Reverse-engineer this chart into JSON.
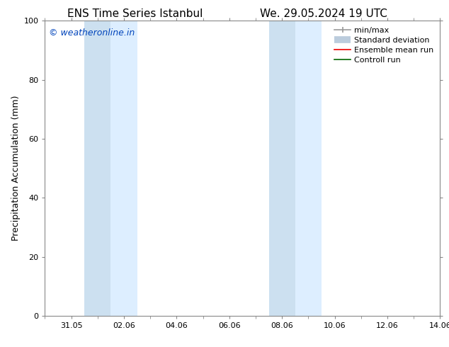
{
  "title_left": "ENS Time Series Istanbul",
  "title_right": "We. 29.05.2024 19 UTC",
  "ylabel": "Precipitation Accumulation (mm)",
  "ylim": [
    0,
    100
  ],
  "yticks": [
    0,
    20,
    40,
    60,
    80,
    100
  ],
  "xtick_labels": [
    "31.05",
    "02.06",
    "04.06",
    "06.06",
    "08.06",
    "10.06",
    "12.06",
    "14.06"
  ],
  "shaded_bands": [
    {
      "x_start": 1.5,
      "x_end": 2.5,
      "color": "#cce0f0"
    },
    {
      "x_start": 2.5,
      "x_end": 3.5,
      "color": "#ddeeff"
    },
    {
      "x_start": 8.5,
      "x_end": 9.5,
      "color": "#cce0f0"
    },
    {
      "x_start": 9.5,
      "x_end": 10.5,
      "color": "#ddeeff"
    }
  ],
  "watermark_text": "© weatheronline.in",
  "watermark_color": "#0044bb",
  "background_color": "#ffffff",
  "legend_entries": [
    {
      "label": "min/max",
      "color": "#999999",
      "lw": 1.2,
      "style": "minmax"
    },
    {
      "label": "Standard deviation",
      "color": "#bbccdd",
      "lw": 7,
      "style": "thick"
    },
    {
      "label": "Ensemble mean run",
      "color": "#ee0000",
      "lw": 1.2,
      "style": "line"
    },
    {
      "label": "Controll run",
      "color": "#006600",
      "lw": 1.2,
      "style": "line"
    }
  ],
  "title_fontsize": 11,
  "ylabel_fontsize": 9,
  "tick_fontsize": 8,
  "legend_fontsize": 8,
  "watermark_fontsize": 9,
  "spine_color": "#888888",
  "grid_color": "#dddddd",
  "x_min": 0,
  "x_max": 15,
  "xtick_positions": [
    1,
    3,
    5,
    7,
    9,
    11,
    13,
    15
  ]
}
